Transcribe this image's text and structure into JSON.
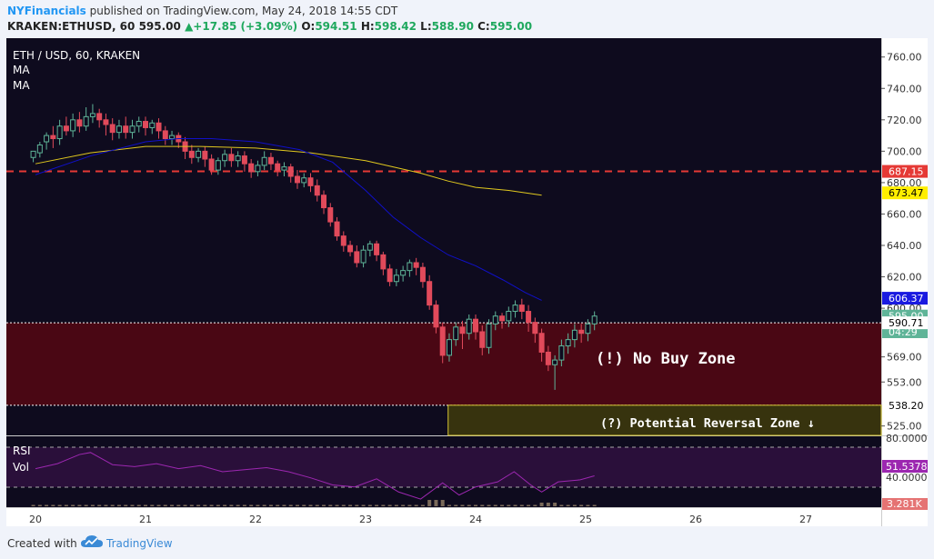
{
  "header": {
    "user": "NYFinancials",
    "published": " published on TradingView.com, May 24, 2018 14:55 CDT",
    "symbol": "KRAKEN:ETHUSD, 60",
    "close_val": "595.00",
    "change": "+17.85 (+3.09%)",
    "o_label": "O:",
    "o_val": "594.51",
    "h_label": "H:",
    "h_val": "598.42",
    "l_label": "L:",
    "l_val": "588.90",
    "c_label": "C:",
    "c_val": "595.00"
  },
  "legend": {
    "title": "ETH / USD, 60, KRAKEN",
    "ma1": "MA",
    "ma2": "MA"
  },
  "annotations": {
    "no_buy": "(!) No Buy Zone",
    "reversal": "(?) Potential Reversal Zone ↓"
  },
  "rsi_panel": {
    "rsi_label": "RSI",
    "vol_label": "Vol",
    "tick_top": "80.0000",
    "tick_bottom": "40.0000",
    "rsi_value": "51.5378",
    "vol_value": "3.281K"
  },
  "footer": {
    "created_with": "Created with",
    "brand": "TradingView"
  },
  "colors": {
    "chart_bg": "#0e0b1e",
    "no_buy_fill": "#4a0714",
    "reversal_fill": "#37330e",
    "reversal_border": "#d8c734",
    "up_candle": "#5fb498",
    "down_candle": "#e14a5b",
    "ma_fast": "#1010c8",
    "ma_slow": "#e0c81e",
    "rsi_line": "#9c27b0",
    "dashed_level": "#e53935"
  },
  "chart_data": {
    "type": "candlestick",
    "title": "ETH / USD, 60, KRAKEN",
    "x_ticks": [
      "20",
      "21",
      "22",
      "23",
      "24",
      "25",
      "26",
      "27"
    ],
    "y_ticks": [
      760,
      740,
      720,
      700,
      680,
      660,
      640,
      620,
      600,
      569,
      553,
      525
    ],
    "y_tick_labels": [
      "760.00",
      "740.00",
      "720.00",
      "700.00",
      "680.00",
      "660.00",
      "640.00",
      "620.00",
      "600.00",
      "569.00",
      "553.00",
      "525.00"
    ],
    "ylim": [
      519,
      772
    ],
    "price_labels": [
      {
        "value": 687.15,
        "text": "687.15",
        "bg": "#e53935",
        "fg": "#ffffff"
      },
      {
        "value": 673.47,
        "text": "673.47",
        "bg": "#ffee00",
        "fg": "#000000"
      },
      {
        "value": 606.37,
        "text": "606.37",
        "bg": "#1a1ae0",
        "fg": "#ffffff"
      },
      {
        "value": 595.0,
        "text": "595.00",
        "bg": "#5fb498",
        "fg": "#ffffff"
      },
      {
        "value": 585.0,
        "text": "04:29",
        "bg": "#5fb498",
        "fg": "#ffffff"
      },
      {
        "value": 590.71,
        "text": "590.71",
        "bg": "#ffffff",
        "fg": "#000000"
      },
      {
        "value": 538.2,
        "text": "538.20",
        "bg": "#ffffff",
        "fg": "#000000"
      }
    ],
    "levels": {
      "resistance_dashed": 687.15,
      "zone_top": 590.71,
      "zone_bottom": 538.2
    },
    "reversal_zone": {
      "start_x": 23.75,
      "end_x": 27.6,
      "top": 538.2,
      "bottom": 519
    },
    "ma_fast": {
      "x": [
        20.0,
        20.5,
        21.0,
        21.3,
        21.6,
        22.0,
        22.4,
        22.7,
        23.0,
        23.25,
        23.5,
        23.75,
        24.0,
        24.25,
        24.45,
        24.6
      ],
      "y": [
        685,
        697,
        706,
        708,
        708,
        706,
        701,
        693,
        675,
        658,
        645,
        634,
        627,
        618,
        610,
        605
      ]
    },
    "ma_slow": {
      "x": [
        20.0,
        20.5,
        21.0,
        21.5,
        22.0,
        22.5,
        23.0,
        23.25,
        23.5,
        23.75,
        24.0,
        24.3,
        24.6
      ],
      "y": [
        692,
        699,
        703,
        703,
        702,
        699,
        694,
        690,
        686,
        681,
        677,
        675,
        672
      ]
    },
    "candles": [
      [
        19.98,
        696,
        700,
        693,
        699
      ],
      [
        20.04,
        699,
        704,
        696,
        706
      ],
      [
        20.1,
        706,
        710,
        701,
        712
      ],
      [
        20.16,
        710,
        708,
        702,
        716
      ],
      [
        20.22,
        708,
        716,
        704,
        720
      ],
      [
        20.28,
        716,
        713,
        710,
        722
      ],
      [
        20.34,
        713,
        720,
        709,
        724
      ],
      [
        20.4,
        720,
        716,
        712,
        725
      ],
      [
        20.46,
        716,
        722,
        713,
        728
      ],
      [
        20.52,
        722,
        724,
        718,
        730
      ],
      [
        20.58,
        724,
        720,
        715,
        727
      ],
      [
        20.64,
        720,
        717,
        710,
        724
      ],
      [
        20.7,
        717,
        712,
        707,
        721
      ],
      [
        20.76,
        712,
        716,
        708,
        720
      ],
      [
        20.82,
        716,
        712,
        708,
        722
      ],
      [
        20.88,
        712,
        716,
        708,
        720
      ],
      [
        20.94,
        716,
        719,
        712,
        722
      ],
      [
        21.0,
        719,
        715,
        710,
        722
      ],
      [
        21.06,
        715,
        718,
        711,
        720
      ],
      [
        21.12,
        718,
        713,
        708,
        721
      ],
      [
        21.18,
        713,
        708,
        704,
        716
      ],
      [
        21.24,
        708,
        710,
        704,
        713
      ],
      [
        21.3,
        710,
        706,
        702,
        712
      ],
      [
        21.36,
        706,
        700,
        695,
        709
      ],
      [
        21.42,
        700,
        696,
        692,
        704
      ],
      [
        21.48,
        696,
        700,
        693,
        702
      ],
      [
        21.54,
        700,
        695,
        690,
        703
      ],
      [
        21.6,
        695,
        688,
        685,
        698
      ],
      [
        21.66,
        688,
        694,
        685,
        696
      ],
      [
        21.72,
        694,
        698,
        690,
        701
      ],
      [
        21.78,
        698,
        694,
        690,
        702
      ],
      [
        21.84,
        694,
        697,
        690,
        700
      ],
      [
        21.9,
        697,
        692,
        687,
        700
      ],
      [
        21.96,
        692,
        687,
        683,
        695
      ],
      [
        22.02,
        687,
        691,
        684,
        694
      ],
      [
        22.08,
        691,
        696,
        688,
        700
      ],
      [
        22.14,
        696,
        692,
        688,
        699
      ],
      [
        22.2,
        692,
        688,
        684,
        694
      ],
      [
        22.26,
        688,
        690,
        684,
        693
      ],
      [
        22.32,
        690,
        684,
        680,
        692
      ],
      [
        22.38,
        684,
        680,
        676,
        688
      ],
      [
        22.44,
        680,
        683,
        677,
        686
      ],
      [
        22.5,
        683,
        678,
        674,
        686
      ],
      [
        22.56,
        678,
        672,
        668,
        682
      ],
      [
        22.62,
        672,
        664,
        660,
        675
      ],
      [
        22.68,
        664,
        655,
        652,
        667
      ],
      [
        22.74,
        655,
        646,
        643,
        658
      ],
      [
        22.8,
        646,
        640,
        636,
        649
      ],
      [
        22.86,
        640,
        636,
        633,
        643
      ],
      [
        22.92,
        636,
        629,
        626,
        640
      ],
      [
        22.98,
        629,
        637,
        626,
        640
      ],
      [
        23.04,
        637,
        641,
        633,
        643
      ],
      [
        23.1,
        641,
        634,
        630,
        643
      ],
      [
        23.16,
        634,
        625,
        621,
        636
      ],
      [
        23.22,
        625,
        617,
        614,
        628
      ],
      [
        23.28,
        617,
        621,
        614,
        625
      ],
      [
        23.34,
        621,
        624,
        617,
        627
      ],
      [
        23.4,
        624,
        629,
        620,
        631
      ],
      [
        23.46,
        629,
        626,
        621,
        632
      ],
      [
        23.52,
        626,
        617,
        613,
        629
      ],
      [
        23.58,
        617,
        602,
        599,
        621
      ],
      [
        23.64,
        602,
        588,
        584,
        605
      ],
      [
        23.7,
        588,
        570,
        565,
        591
      ],
      [
        23.76,
        570,
        580,
        566,
        584
      ],
      [
        23.82,
        580,
        588,
        576,
        591
      ],
      [
        23.88,
        588,
        584,
        574,
        592
      ],
      [
        23.94,
        584,
        593,
        580,
        596
      ],
      [
        24.0,
        593,
        585,
        580,
        596
      ],
      [
        24.06,
        585,
        575,
        570,
        589
      ],
      [
        24.12,
        575,
        590,
        571,
        593
      ],
      [
        24.18,
        590,
        595,
        586,
        598
      ],
      [
        24.24,
        595,
        592,
        587,
        597
      ],
      [
        24.3,
        592,
        598,
        588,
        601
      ],
      [
        24.36,
        598,
        602,
        594,
        605
      ],
      [
        24.42,
        602,
        598,
        593,
        606
      ],
      [
        24.48,
        598,
        591,
        585,
        602
      ],
      [
        24.54,
        591,
        584,
        578,
        594
      ],
      [
        24.6,
        584,
        572,
        566,
        587
      ],
      [
        24.66,
        572,
        564,
        560,
        576
      ],
      [
        24.72,
        564,
        567,
        548,
        570
      ],
      [
        24.78,
        567,
        576,
        563,
        580
      ],
      [
        24.84,
        576,
        580,
        571,
        584
      ],
      [
        24.9,
        580,
        586,
        575,
        590
      ],
      [
        24.96,
        586,
        584,
        578,
        590
      ],
      [
        25.02,
        584,
        590,
        579,
        593
      ],
      [
        25.08,
        590,
        595,
        586,
        598
      ]
    ],
    "rsi": {
      "ylim": [
        20,
        90
      ],
      "x": [
        20.0,
        20.2,
        20.4,
        20.5,
        20.7,
        20.9,
        21.1,
        21.3,
        21.5,
        21.7,
        21.9,
        22.1,
        22.3,
        22.5,
        22.7,
        22.9,
        23.1,
        23.3,
        23.5,
        23.7,
        23.85,
        24.0,
        24.2,
        24.35,
        24.5,
        24.6,
        24.75,
        24.95,
        25.08
      ],
      "y": [
        58,
        63,
        72,
        74,
        62,
        60,
        63,
        58,
        61,
        55,
        57,
        59,
        55,
        49,
        42,
        40,
        48,
        35,
        28,
        44,
        32,
        40,
        45,
        55,
        42,
        35,
        45,
        47,
        51
      ]
    }
  }
}
